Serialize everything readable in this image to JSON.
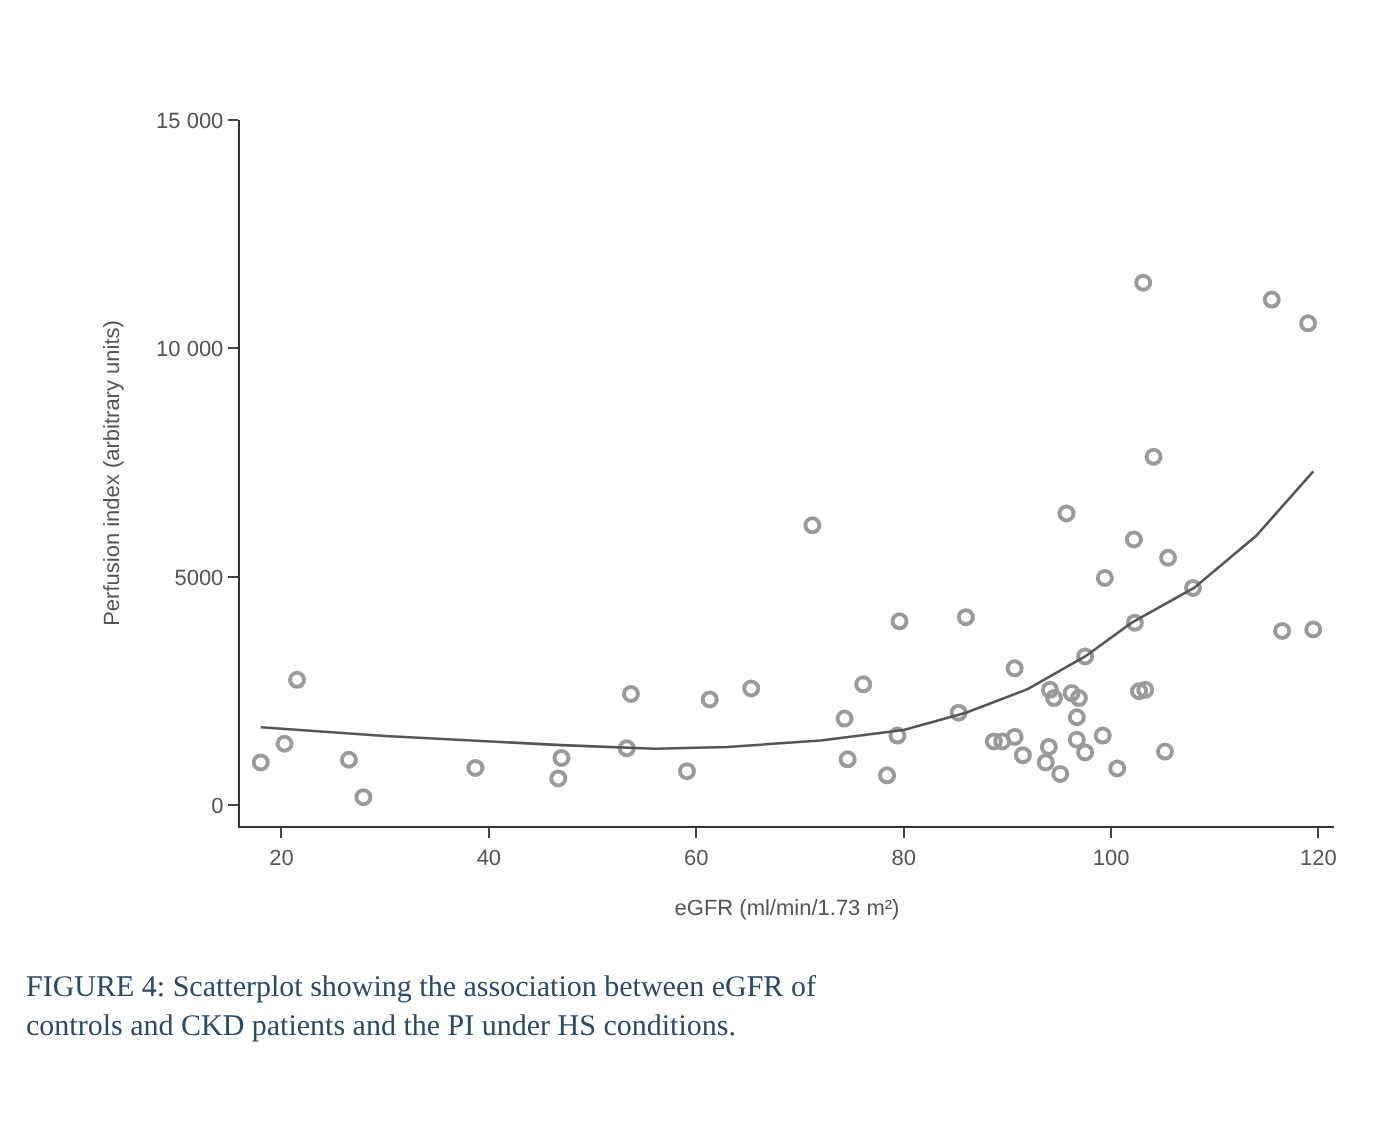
{
  "chart_data": {
    "type": "scatter",
    "xlabel": "eGFR (ml/min/1.73 m²)",
    "ylabel": "Perfusion index (arbitrary units)",
    "series": [
      {
        "color": "#9a9a9a",
        "marker": "circle",
        "x": [
          18,
          20.3,
          21.5,
          26.5,
          27.9,
          38.7,
          47,
          46.7,
          53.7,
          53.3,
          59.1,
          61.3,
          65.3,
          71.2,
          119,
          104.1,
          95.7,
          102.2,
          105.5,
          99.4,
          107.9,
          79.6,
          86,
          102.3,
          116.5,
          119.5,
          97.5,
          90.7,
          76.1,
          94.1,
          94.5,
          96.2,
          96.9,
          102.7,
          103.3,
          74.3,
          96.7,
          85.3,
          79.4,
          88.7,
          89.5,
          90.7,
          91.5,
          96.7,
          99.2,
          94,
          97.5,
          93.7,
          95.1,
          100.6,
          105.2,
          74.6,
          78.4,
          103.1,
          115.5
        ],
        "values": [
          940,
          1350,
          2750,
          1000,
          180,
          820,
          1040,
          590,
          2440,
          1250,
          750,
          2320,
          2560,
          6130,
          10550,
          7630,
          6390,
          5820,
          5420,
          4980,
          4760,
          4030,
          4120,
          4000,
          3820,
          3850,
          3260,
          3000,
          2650,
          2530,
          2350,
          2460,
          2350,
          2500,
          2530,
          1900,
          1930,
          2030,
          1530,
          1400,
          1400,
          1500,
          1100,
          1440,
          1530,
          1280,
          1160,
          940,
          690,
          810,
          1180,
          1010,
          660,
          11440,
          11070
        ]
      },
      {
        "type": "line",
        "color": "#555555",
        "line_style": "solid",
        "x": [
          18,
          30,
          47,
          56,
          63,
          72,
          80,
          86,
          92,
          97.5,
          102,
          108,
          114,
          119.5
        ],
        "values": [
          1710,
          1520,
          1320,
          1240,
          1280,
          1420,
          1650,
          2030,
          2550,
          3260,
          4000,
          4760,
          5900,
          7310
        ]
      }
    ],
    "xlim": [
      16,
      121.5
    ],
    "xticks": [
      20,
      40,
      60,
      80,
      100,
      120
    ],
    "ylim": [
      -450,
      15000
    ],
    "yticks": [
      0,
      5000,
      {
        "value": 10000,
        "label": "10 000"
      },
      {
        "value": 15000,
        "label": "15 000"
      }
    ],
    "annotations": [
      "FIGURE 4: Scatterplot showing the association between eGFR of controls and CKD patients and the PI under HS conditions."
    ]
  }
}
